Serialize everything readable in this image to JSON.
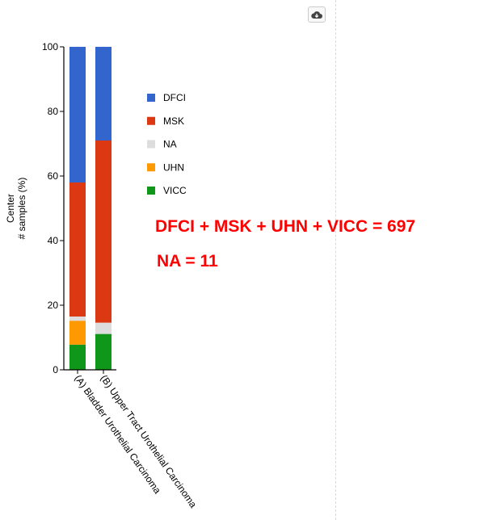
{
  "toolbar": {
    "download_icon": "cloud-download-icon"
  },
  "annotations": {
    "total": "DFCI + MSK + UHN + VICC = 697",
    "na": "NA = 11"
  },
  "chart_data": {
    "type": "bar",
    "stacked": true,
    "ylabel_line1": "Center",
    "ylabel_line2": "# samples (%)",
    "ylim": [
      0,
      100
    ],
    "yticks": [
      "0",
      "20",
      "40",
      "60",
      "80",
      "100"
    ],
    "categories": [
      "(A) Bladder Urothelial Carcinoma",
      "(B) Upper Tract Urothelial Carcinoma"
    ],
    "series": [
      {
        "name": "VICC",
        "color": "#109618",
        "values": [
          7.8,
          11.1
        ]
      },
      {
        "name": "UHN",
        "color": "#ff9900",
        "values": [
          7.4,
          0
        ]
      },
      {
        "name": "NA",
        "color": "#dddddd",
        "values": [
          1.3,
          3.5
        ]
      },
      {
        "name": "MSK",
        "color": "#dc3912",
        "values": [
          41.5,
          56.4
        ]
      },
      {
        "name": "DFCI",
        "color": "#3366cc",
        "values": [
          42.0,
          29.0
        ]
      }
    ],
    "legend_order": [
      "DFCI",
      "MSK",
      "NA",
      "UHN",
      "VICC"
    ],
    "legend_position": "right",
    "grid": false
  }
}
